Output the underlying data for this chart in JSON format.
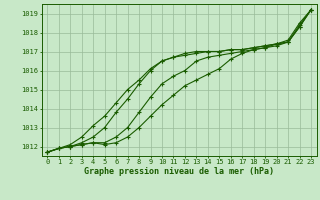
{
  "title": "Graphe pression niveau de la mer (hPa)",
  "xlabel_hours": [
    0,
    1,
    2,
    3,
    4,
    5,
    6,
    7,
    8,
    9,
    10,
    11,
    12,
    13,
    14,
    15,
    16,
    17,
    18,
    19,
    20,
    21,
    22,
    23
  ],
  "ylim": [
    1011.5,
    1019.5
  ],
  "yticks": [
    1012,
    1013,
    1014,
    1015,
    1016,
    1017,
    1018,
    1019
  ],
  "line1": [
    1011.7,
    1011.9,
    1012.0,
    1012.1,
    1012.2,
    1012.1,
    1012.2,
    1012.5,
    1013.0,
    1013.6,
    1014.2,
    1014.7,
    1015.2,
    1015.5,
    1015.8,
    1016.1,
    1016.6,
    1016.9,
    1017.1,
    1017.2,
    1017.4,
    1017.6,
    1018.5,
    1019.2
  ],
  "line2": [
    1011.7,
    1011.9,
    1012.0,
    1012.1,
    1012.2,
    1012.2,
    1012.5,
    1013.0,
    1013.8,
    1014.6,
    1015.3,
    1015.7,
    1016.0,
    1016.5,
    1016.7,
    1016.8,
    1016.9,
    1017.0,
    1017.1,
    1017.2,
    1017.3,
    1017.5,
    1018.4,
    1019.2
  ],
  "line3": [
    1011.7,
    1011.9,
    1012.0,
    1012.2,
    1012.5,
    1013.0,
    1013.8,
    1014.5,
    1015.3,
    1016.0,
    1016.5,
    1016.7,
    1016.8,
    1016.9,
    1017.0,
    1017.0,
    1017.1,
    1017.1,
    1017.2,
    1017.3,
    1017.4,
    1017.5,
    1018.3,
    1019.2
  ],
  "line4": [
    1011.7,
    1011.9,
    1012.1,
    1012.5,
    1013.1,
    1013.6,
    1014.3,
    1015.0,
    1015.5,
    1016.1,
    1016.5,
    1016.7,
    1016.9,
    1017.0,
    1017.0,
    1017.0,
    1017.1,
    1017.1,
    1017.2,
    1017.3,
    1017.4,
    1017.5,
    1018.3,
    1019.2
  ],
  "line_color": "#1a5c00",
  "bg_color": "#c8e8c8",
  "grid_color": "#99bb99",
  "title_color": "#1a5c00",
  "tick_color": "#1a5c00",
  "spine_color": "#1a5c00"
}
